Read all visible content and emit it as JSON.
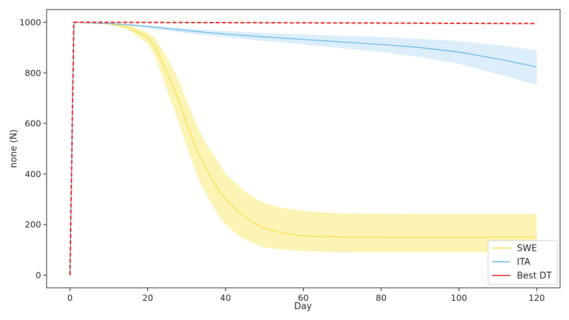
{
  "chart_data": {
    "type": "line",
    "title": "",
    "xlabel": "Day",
    "ylabel": "none (N)",
    "xlim": [
      -6,
      126
    ],
    "ylim": [
      -50,
      1050
    ],
    "xticks": [
      0,
      20,
      40,
      60,
      80,
      100,
      120
    ],
    "yticks": [
      0,
      200,
      400,
      600,
      800,
      1000
    ],
    "grid": false,
    "legend_position": "lower-right",
    "series": [
      {
        "name": "SWE",
        "color": "#f5dc3c",
        "band_color": "#fbf2a8",
        "x": [
          0,
          1,
          5,
          10,
          15,
          20,
          22,
          25,
          28,
          30,
          33,
          35,
          38,
          40,
          43,
          45,
          48,
          50,
          55,
          60,
          65,
          70,
          80,
          90,
          100,
          110,
          120
        ],
        "y": [
          0,
          1000,
          997,
          994,
          980,
          940,
          900,
          800,
          690,
          600,
          480,
          420,
          340,
          300,
          255,
          230,
          200,
          185,
          165,
          155,
          152,
          151,
          150,
          150,
          150,
          150,
          150
        ],
        "upper": [
          0,
          1000,
          998,
          995,
          990,
          960,
          935,
          860,
          770,
          690,
          580,
          520,
          450,
          400,
          360,
          330,
          300,
          285,
          265,
          255,
          248,
          245,
          243,
          242,
          242,
          242,
          242
        ],
        "lower": [
          0,
          1000,
          996,
          992,
          970,
          915,
          860,
          730,
          600,
          510,
          380,
          320,
          240,
          200,
          160,
          140,
          120,
          110,
          100,
          95,
          92,
          90,
          90,
          90,
          90,
          90,
          90
        ]
      },
      {
        "name": "ITA",
        "color": "#5ab0e0",
        "band_color": "#d6ebf9",
        "x": [
          0,
          1,
          5,
          10,
          15,
          20,
          30,
          40,
          50,
          60,
          70,
          80,
          90,
          100,
          110,
          120
        ],
        "y": [
          0,
          1000,
          997,
          995,
          990,
          983,
          967,
          953,
          942,
          932,
          922,
          912,
          900,
          882,
          855,
          823
        ],
        "upper": [
          0,
          1000,
          998,
          996,
          993,
          988,
          976,
          965,
          958,
          952,
          947,
          942,
          935,
          925,
          910,
          890
        ],
        "lower": [
          0,
          1000,
          996,
          994,
          987,
          977,
          957,
          940,
          926,
          912,
          897,
          882,
          862,
          835,
          795,
          752
        ]
      },
      {
        "name": "Best DT",
        "color": "#e31a1c",
        "dashed": true,
        "x": [
          0,
          1,
          120
        ],
        "y": [
          0,
          1000,
          995
        ]
      }
    ]
  }
}
